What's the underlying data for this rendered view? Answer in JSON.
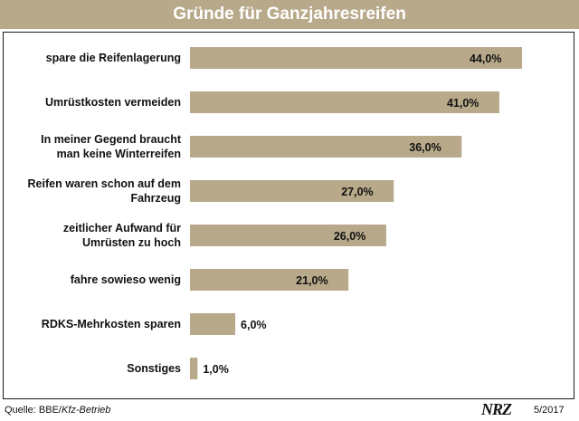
{
  "header": {
    "title": "Gründe für Ganzjahresreifen"
  },
  "chart_data": {
    "type": "bar",
    "orientation": "horizontal",
    "categories": [
      [
        "spare die Reifenlagerung"
      ],
      [
        "Umrüstkosten vermeiden"
      ],
      [
        "In meiner Gegend braucht",
        "man keine Winterreifen"
      ],
      [
        "Reifen waren schon auf dem",
        "Fahrzeug"
      ],
      [
        "zeitlicher Aufwand für",
        "Umrüsten zu hoch"
      ],
      [
        "fahre sowieso wenig"
      ],
      [
        "RDKS-Mehrkosten sparen"
      ],
      [
        "Sonstiges"
      ]
    ],
    "values": [
      44.0,
      41.0,
      36.0,
      27.0,
      26.0,
      21.0,
      6.0,
      1.0
    ],
    "value_labels": [
      "44,0%",
      "41,0%",
      "36,0%",
      "27,0%",
      "26,0%",
      "21,0%",
      "6,0%",
      "1,0%"
    ],
    "xlim": [
      0,
      44
    ],
    "bar_color": "#b8a98a",
    "grid": false,
    "legend": "none"
  },
  "footer": {
    "source_prefix": "Quelle: BBE/",
    "source_publication": "Kfz-Betrieb",
    "logo_text": "NRZ",
    "date": "5/2017"
  },
  "colors": {
    "accent": "#b8a98a",
    "text": "#111111",
    "border": "#1a1a1a"
  }
}
